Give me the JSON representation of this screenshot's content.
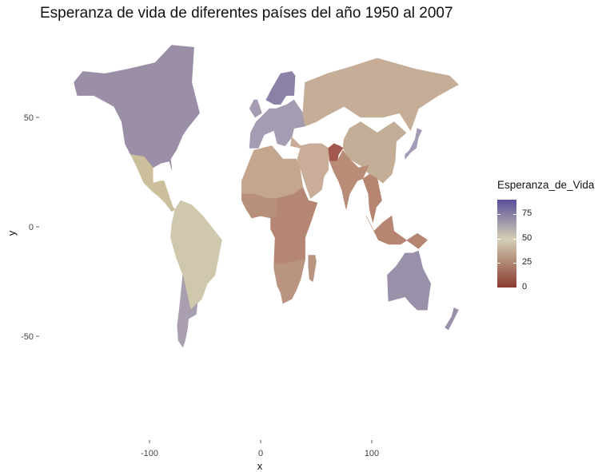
{
  "title": "Esperanza de vida de diferentes países del año 1950 al 2007",
  "chart_data": {
    "type": "map",
    "xlabel": "x",
    "ylabel": "y",
    "x_ticks": [
      "-100",
      "0",
      "100"
    ],
    "y_ticks": [
      "50",
      "0",
      "-50"
    ],
    "xlim": [
      -180,
      190
    ],
    "ylim": [
      -90,
      85
    ],
    "grid": false,
    "legend": {
      "title": "Esperanza_de_Vida",
      "placement": "right",
      "ticks": [
        "75",
        "50",
        "25",
        "0"
      ],
      "range": [
        0,
        90
      ],
      "colors": {
        "low": "#8b3a2f",
        "mid": "#d4cfb6",
        "high": "#5b4f9a"
      }
    }
  },
  "colors": {
    "north_america": "#9b8fa8",
    "central_america": "#cbbf9c",
    "south_america": "#cfc8ad",
    "southern_cone": "#a99fb0",
    "europe_north": "#8c82a8",
    "europe": "#a59bb2",
    "russia_asia": "#c5ad98",
    "china": "#c3ad97",
    "middle_east": "#c9ad98",
    "afghanistan": "#a2584e",
    "india": "#b88c77",
    "africa_north": "#c4a58d",
    "africa_west": "#b88f7a",
    "africa_central": "#b58673",
    "africa_south": "#b99480",
    "southeast_asia": "#b68672",
    "australia": "#9a90aa",
    "japan": "#a39ab6"
  }
}
